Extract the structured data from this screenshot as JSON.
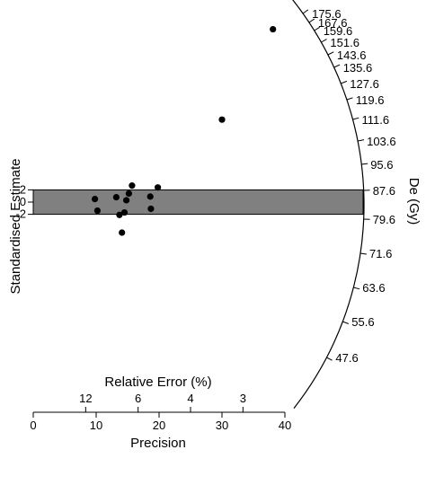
{
  "chart_data": {
    "type": "radial",
    "ylabel": "Standardised Estimate",
    "y_ticks": [
      "2",
      "0",
      "-2"
    ],
    "x_axis": {
      "label": "Precision",
      "ticks": [
        0,
        10,
        20,
        30,
        40
      ],
      "lim": [
        0,
        40
      ]
    },
    "relative_error_axis": {
      "label": "Relative Error (%)",
      "ticks": [
        12,
        6,
        4,
        3
      ]
    },
    "radial_axis": {
      "label": "De (Gy)",
      "ticks": [
        "47.6",
        "55.6",
        "63.6",
        "71.6",
        "79.6",
        "87.6",
        "95.6",
        "103.6",
        "111.6",
        "119.6",
        "127.6",
        "135.6",
        "143.6",
        "151.6",
        "159.6",
        "167.6",
        "175.6"
      ],
      "central_value": 81.1,
      "band": [
        -2,
        2
      ]
    },
    "points": [
      {
        "precision": 9.8,
        "z": 0.5
      },
      {
        "precision": 10.2,
        "z": -1.4
      },
      {
        "precision": 13.2,
        "z": 0.8
      },
      {
        "precision": 13.7,
        "z": -2.1
      },
      {
        "precision": 14.1,
        "z": -5.0
      },
      {
        "precision": 14.5,
        "z": -1.7
      },
      {
        "precision": 14.8,
        "z": 0.3
      },
      {
        "precision": 15.2,
        "z": 1.4
      },
      {
        "precision": 15.7,
        "z": 2.7
      },
      {
        "precision": 18.6,
        "z": 0.9
      },
      {
        "precision": 18.7,
        "z": -1.1
      },
      {
        "precision": 19.8,
        "z": 2.4
      },
      {
        "precision": 30.0,
        "z": 13.5
      },
      {
        "precision": 38.1,
        "z": 28.3
      }
    ]
  }
}
